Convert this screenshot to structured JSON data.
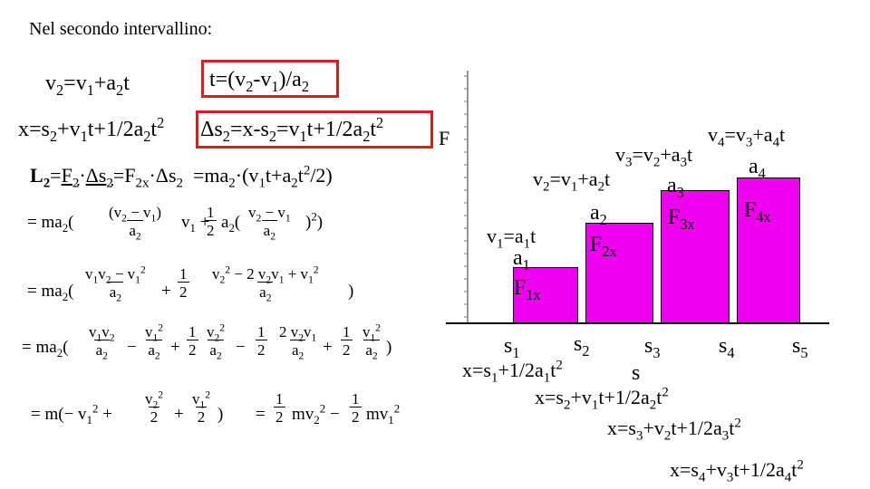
{
  "header": {
    "title": "Nel secondo intervallino:"
  },
  "top_equations": {
    "v2": "v₂=v₁+a₂t",
    "t": "t=(v₂-v₁)/a₂",
    "x": "x=s₂+v₁t+1/2a₂t²",
    "ds2": "Δs₂=x-s₂=v₁t+1/2a₂t²",
    "L2": "L₂=F₂·Δs₂=F₂ₓ·Δs₂ =ma₂·(v₁t+a₂t²/2)"
  },
  "derivation": {
    "line1": "= ma₂((v₂ − v₁)/a₂ · v₁ + 1/2 · a₂((v₂ − v₁)/a₂)²)",
    "line2": "= ma₂((v₁v₂ − v₁²)/a₂ + 1/2 · (v₂² − 2v₂v₁ + v₁²)/a₂)",
    "line3": "= ma₂(v₁v₂/a₂ − v₁²/a₂ + 1/2 · v₂²/a₂ − 1/2 · 2v₂v₁/a₂ + 1/2 · v₁²/a₂)",
    "line4": "= m(−v₁² + v₂²/2 + v₁²/2) = 1/2 mv₂² − 1/2 mv₁²"
  },
  "graph": {
    "axis_label": "F",
    "bars": [
      {
        "force": "F1x",
        "accel": "a1",
        "velocity": "v1=a1t"
      },
      {
        "force": "F2x",
        "accel": "a2",
        "velocity": "v2=v1+a2t"
      },
      {
        "force": "F3x",
        "accel": "a3",
        "velocity": "v3=v2+a3t"
      },
      {
        "force": "F4x",
        "accel": "a4",
        "velocity": "v4=v3+a4t"
      }
    ],
    "s_ticks": [
      "s1",
      "s2",
      "s3",
      "s4",
      "s5"
    ],
    "s_label": "s",
    "positions": [
      "x=s1+1/2a1t²",
      "x=s2+v1t+1/2a2t²",
      "x=s3+v2t+1/2a3t²",
      "x=s4+v3t+1/2a4t²"
    ]
  },
  "colors": {
    "bar_fill": "#ee00ee",
    "highlight_box": "#d62020"
  }
}
